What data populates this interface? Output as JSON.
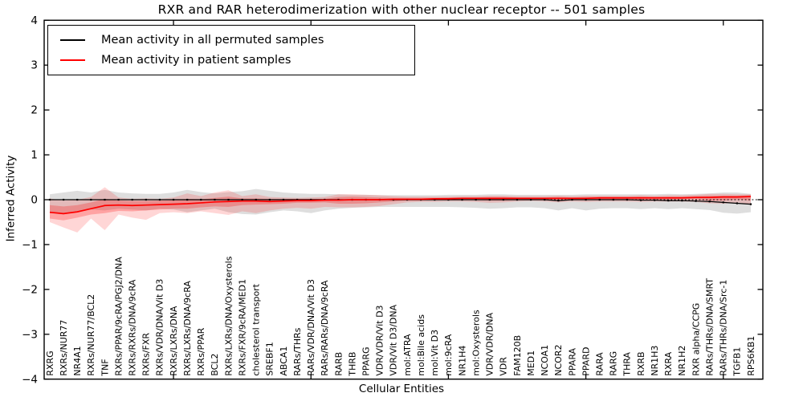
{
  "title": "RXR and RAR heterodimerization with other nuclear receptor -- 501 samples",
  "chart_data": {
    "type": "line",
    "title": "RXR and RAR heterodimerization with other nuclear receptor -- 501 samples",
    "xlabel": "Cellular Entities",
    "ylabel": "Inferred Activity",
    "ylim": [
      -4,
      4
    ],
    "yticks": [
      4,
      3,
      2,
      1,
      0,
      -1,
      -2,
      -3,
      -4
    ],
    "xtick_positions": [
      9,
      19,
      29,
      39,
      49
    ],
    "grid": false,
    "legend_position": "upper left",
    "zero_line": true,
    "categories": [
      "RXRG",
      "RXRs/NUR77",
      "NR4A1",
      "RXRs/NUR77/BCL2",
      "TNF",
      "RXRs/PPAR/9cRA/PGJ2/DNA",
      "RXRs/RXRs/DNA/9cRA",
      "RXRs/FXR",
      "RXRs/VDR/DNA/Vit D3",
      "RXRs/LXRs/DNA",
      "RXRs/LXRs/DNA/9cRA",
      "RXRs/PPAR",
      "BCL2",
      "RXRs/LXRs/DNA/Oxysterols",
      "RXRs/FXR/9cRA/MED1",
      "cholesterol transport",
      "SREBF1",
      "ABCA1",
      "RARs/THRs",
      "RARs/VDR/DNA/Vit D3",
      "RARs/RARs/DNA/9cRA",
      "RARB",
      "THRB",
      "PPARG",
      "VDR/VDR/Vit D3",
      "VDR/Vit D3/DNA",
      "mol:ATRA",
      "mol:Bile acids",
      "mol:Vit D3",
      "mol:9cRA",
      "NR1H4",
      "mol:Oxysterols",
      "VDR/VDR/DNA",
      "VDR",
      "FAM120B",
      "MED1",
      "NCOA1",
      "NCOR2",
      "PPARA",
      "PPARD",
      "RARA",
      "RARG",
      "THRA",
      "RXRB",
      "NR1H3",
      "RXRA",
      "NR1H2",
      "RXR alpha/CCPG",
      "RARs/THRs/DNA/SMRT",
      "RARs/THRs/DNA/Src-1",
      "TGFB1",
      "RPS6KB1"
    ],
    "series": [
      {
        "key": "permuted-mean-line",
        "name": "Mean activity in all permuted samples",
        "color": "#000000",
        "width": 1.2,
        "markers": true,
        "values": [
          0,
          0,
          0,
          0,
          0,
          0,
          0,
          0,
          0,
          0,
          0,
          0,
          0,
          0,
          0,
          0,
          0,
          0,
          0,
          0,
          0,
          0,
          0,
          0,
          0,
          0,
          0,
          0,
          0,
          0,
          0,
          0,
          0,
          0,
          0,
          0,
          0,
          -0.02,
          0,
          0,
          0,
          0,
          0,
          -0.01,
          -0.01,
          -0.02,
          -0.02,
          -0.03,
          -0.04,
          -0.06,
          -0.08,
          -0.1
        ]
      },
      {
        "key": "patient-mean-line",
        "name": "Mean activity in patient samples",
        "color": "#ff0000",
        "width": 1.7,
        "markers": false,
        "values": [
          -0.28,
          -0.31,
          -0.27,
          -0.2,
          -0.13,
          -0.12,
          -0.13,
          -0.12,
          -0.11,
          -0.1,
          -0.09,
          -0.07,
          -0.05,
          -0.04,
          -0.03,
          -0.03,
          -0.04,
          -0.03,
          -0.02,
          -0.02,
          -0.01,
          -0.01,
          0.0,
          0.0,
          0.0,
          0.01,
          0.01,
          0.01,
          0.02,
          0.02,
          0.03,
          0.03,
          0.03,
          0.03,
          0.03,
          0.03,
          0.03,
          0.03,
          0.03,
          0.03,
          0.04,
          0.04,
          0.04,
          0.04,
          0.04,
          0.04,
          0.04,
          0.05,
          0.05,
          0.06,
          0.06,
          0.07
        ]
      }
    ],
    "bands": [
      {
        "name": "permuted-range-band",
        "color": "rgba(0,0,0,0.13)",
        "upper": [
          0.12,
          0.16,
          0.2,
          0.16,
          0.22,
          0.16,
          0.14,
          0.13,
          0.13,
          0.16,
          0.22,
          0.17,
          0.14,
          0.17,
          0.19,
          0.24,
          0.2,
          0.16,
          0.14,
          0.13,
          0.13,
          0.12,
          0.11,
          0.11,
          0.1,
          0.1,
          0.1,
          0.1,
          0.1,
          0.11,
          0.11,
          0.11,
          0.12,
          0.12,
          0.11,
          0.11,
          0.11,
          0.11,
          0.11,
          0.12,
          0.12,
          0.12,
          0.12,
          0.12,
          0.12,
          0.13,
          0.12,
          0.13,
          0.14,
          0.16,
          0.16,
          0.13
        ],
        "lower": [
          -0.3,
          -0.33,
          -0.25,
          -0.22,
          -0.24,
          -0.2,
          -0.22,
          -0.24,
          -0.2,
          -0.22,
          -0.28,
          -0.24,
          -0.2,
          -0.28,
          -0.32,
          -0.33,
          -0.28,
          -0.24,
          -0.26,
          -0.3,
          -0.24,
          -0.2,
          -0.18,
          -0.17,
          -0.16,
          -0.16,
          -0.16,
          -0.16,
          -0.16,
          -0.16,
          -0.17,
          -0.18,
          -0.2,
          -0.19,
          -0.17,
          -0.17,
          -0.19,
          -0.24,
          -0.19,
          -0.24,
          -0.2,
          -0.19,
          -0.19,
          -0.21,
          -0.19,
          -0.21,
          -0.19,
          -0.21,
          -0.23,
          -0.29,
          -0.31,
          -0.28
        ]
      },
      {
        "name": "patient-range-outer-band",
        "color": "rgba(255,0,0,0.16)",
        "upper": [
          0.03,
          -0.02,
          0.0,
          0.06,
          0.28,
          0.05,
          0.02,
          0.03,
          0.02,
          0.05,
          0.14,
          0.08,
          0.16,
          0.21,
          0.08,
          0.12,
          0.06,
          0.05,
          0.04,
          0.05,
          0.06,
          0.12,
          0.12,
          0.11,
          0.1,
          0.08,
          0.07,
          0.07,
          0.07,
          0.07,
          0.08,
          0.08,
          0.09,
          0.09,
          0.08,
          0.08,
          0.08,
          0.09,
          0.08,
          0.09,
          0.09,
          0.09,
          0.09,
          0.1,
          0.09,
          0.1,
          0.1,
          0.11,
          0.13,
          0.13,
          0.12,
          0.12
        ],
        "lower": [
          -0.5,
          -0.62,
          -0.73,
          -0.42,
          -0.68,
          -0.33,
          -0.4,
          -0.45,
          -0.3,
          -0.28,
          -0.3,
          -0.26,
          -0.3,
          -0.34,
          -0.26,
          -0.3,
          -0.24,
          -0.2,
          -0.18,
          -0.2,
          -0.16,
          -0.17,
          -0.17,
          -0.16,
          -0.14,
          -0.1,
          -0.06,
          -0.05,
          -0.05,
          -0.04,
          -0.04,
          -0.05,
          -0.07,
          -0.06,
          -0.04,
          -0.03,
          -0.04,
          -0.06,
          -0.04,
          -0.05,
          -0.04,
          -0.04,
          -0.04,
          -0.05,
          -0.04,
          -0.04,
          -0.04,
          -0.05,
          -0.08,
          -0.09,
          -0.06,
          -0.1
        ]
      },
      {
        "name": "patient-range-inner-band",
        "color": "rgba(255,0,0,0.24)",
        "upper": [
          -0.12,
          -0.15,
          -0.12,
          -0.06,
          0.02,
          -0.02,
          -0.03,
          -0.03,
          -0.02,
          -0.01,
          0.02,
          0.01,
          0.04,
          0.07,
          0.03,
          0.03,
          0.02,
          0.02,
          0.02,
          0.02,
          0.02,
          0.06,
          0.07,
          0.06,
          0.05,
          0.04,
          0.04,
          0.04,
          0.04,
          0.05,
          0.05,
          0.05,
          0.06,
          0.06,
          0.05,
          0.05,
          0.05,
          0.06,
          0.05,
          0.06,
          0.06,
          0.06,
          0.06,
          0.07,
          0.06,
          0.07,
          0.07,
          0.08,
          0.09,
          0.09,
          0.09,
          0.1
        ],
        "lower": [
          -0.42,
          -0.46,
          -0.4,
          -0.33,
          -0.3,
          -0.25,
          -0.26,
          -0.24,
          -0.22,
          -0.2,
          -0.2,
          -0.17,
          -0.15,
          -0.16,
          -0.12,
          -0.11,
          -0.1,
          -0.09,
          -0.07,
          -0.07,
          -0.06,
          -0.09,
          -0.09,
          -0.08,
          -0.06,
          -0.04,
          -0.02,
          -0.02,
          -0.01,
          -0.01,
          -0.01,
          -0.01,
          -0.02,
          -0.02,
          -0.01,
          0.0,
          -0.01,
          -0.02,
          -0.01,
          -0.01,
          0.0,
          0.0,
          0.0,
          -0.01,
          0.0,
          0.0,
          0.01,
          0.01,
          -0.02,
          -0.02,
          0.01,
          -0.02
        ]
      }
    ]
  }
}
